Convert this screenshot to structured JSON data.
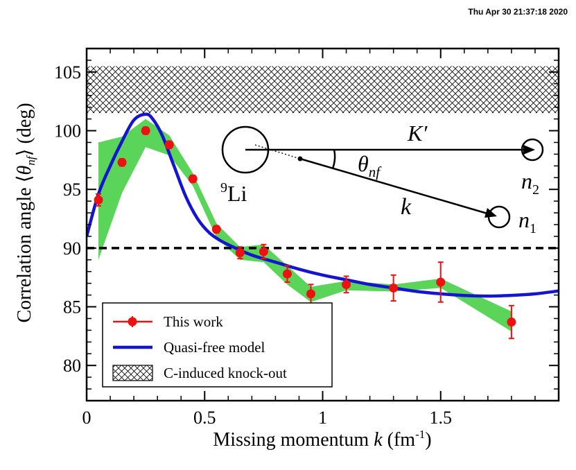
{
  "timestamp": "Thu Apr 30 21:37:18 2020",
  "chart_data": {
    "type": "scatter",
    "title": "",
    "xlabel": "Missing momentum",
    "xlabel_var": "k",
    "xlabel_unit": "(fm",
    "xlabel_unit_sup": "-1",
    "xlabel_unit_end": ")",
    "ylabel": "Correlation angle",
    "ylabel_unit": "(deg)",
    "xlim": [
      0,
      2.0
    ],
    "ylim": [
      77,
      107
    ],
    "x_ticks": [
      0,
      0.5,
      1,
      1.5
    ],
    "x_tick_labels": [
      "0",
      "0.5",
      "1",
      "1.5"
    ],
    "y_ticks": [
      80,
      85,
      90,
      95,
      100,
      105
    ],
    "y_tick_labels": [
      "80",
      "85",
      "90",
      "95",
      "100",
      "105"
    ],
    "reference_line_y": 90,
    "hatched_band": {
      "name": "C-induced knock-out",
      "y_range": [
        101.5,
        105.5
      ]
    },
    "series": [
      {
        "name": "This work",
        "color": "#ee1111",
        "x": [
          0.05,
          0.15,
          0.25,
          0.35,
          0.45,
          0.55,
          0.65,
          0.75,
          0.85,
          0.95,
          1.1,
          1.3,
          1.5,
          1.8
        ],
        "y": [
          94.1,
          97.3,
          100.0,
          98.8,
          95.9,
          91.6,
          89.6,
          89.7,
          87.8,
          86.1,
          86.9,
          86.6,
          87.1,
          83.7
        ],
        "yerr": [
          0.5,
          0.3,
          0.3,
          0.3,
          0.3,
          0.3,
          0.5,
          0.6,
          0.7,
          0.8,
          0.7,
          1.1,
          1.7,
          1.4
        ],
        "band_low": [
          89.0,
          94.7,
          98.6,
          97.9,
          95.3,
          90.9,
          89.0,
          88.8,
          86.9,
          85.4,
          86.4,
          86.3,
          86.6,
          82.9
        ],
        "band_high": [
          99.0,
          99.5,
          101.0,
          99.6,
          96.4,
          92.1,
          90.1,
          90.3,
          88.5,
          86.7,
          87.2,
          86.9,
          87.4,
          84.6
        ],
        "band_color": "#5ad55a"
      },
      {
        "name": "Quasi-free model",
        "type": "line",
        "color": "#1414d2",
        "x": [
          0.0,
          0.05,
          0.1,
          0.15,
          0.2,
          0.25,
          0.28,
          0.32,
          0.37,
          0.42,
          0.47,
          0.52,
          0.57,
          0.62,
          0.7,
          0.8,
          0.9,
          1.0,
          1.1,
          1.2,
          1.3,
          1.4,
          1.5,
          1.6,
          1.7,
          1.8,
          1.9,
          2.0
        ],
        "y": [
          91.0,
          94.6,
          97.0,
          99.1,
          100.9,
          101.4,
          101.0,
          99.6,
          97.0,
          94.4,
          92.5,
          91.3,
          90.6,
          90.1,
          89.4,
          88.8,
          88.2,
          87.7,
          87.3,
          86.9,
          86.6,
          86.3,
          86.1,
          85.96,
          85.91,
          85.97,
          86.1,
          86.35
        ]
      }
    ],
    "legend": {
      "placement": "bottom-left",
      "entries": [
        "This work",
        "Quasi-free model",
        "C-induced knock-out"
      ]
    }
  },
  "inset_diagram": {
    "nucleus_label": "Li",
    "nucleus_mass_number": "9",
    "vector_K": "K′",
    "vector_k": "k",
    "angle_symbol": "θ",
    "angle_subscript": "nf",
    "neutron_1": "n",
    "neutron_1_sub": "1",
    "neutron_2": "n",
    "neutron_2_sub": "2"
  },
  "ylabel_symbol": "θ",
  "ylabel_subscript": "nf"
}
